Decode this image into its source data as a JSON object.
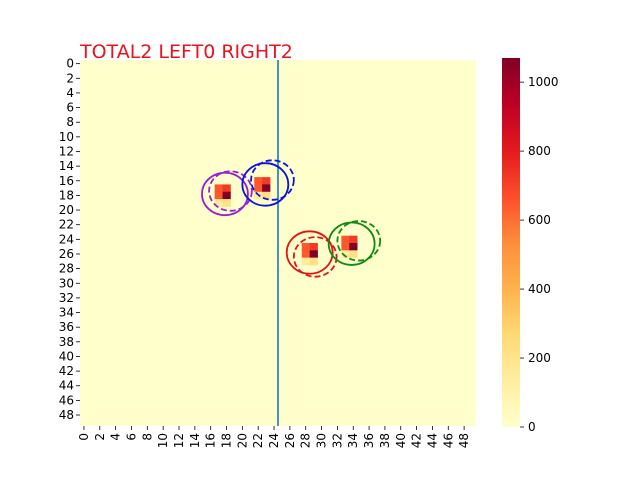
{
  "chart_data": {
    "type": "heatmap",
    "title": "TOTAL2  LEFT0 RIGHT2",
    "title_color": "#e8141c",
    "grid": false,
    "x_range": [
      0,
      49
    ],
    "y_range": [
      0,
      49
    ],
    "x_tick_labels": [
      "0",
      "2",
      "4",
      "6",
      "8",
      "10",
      "12",
      "14",
      "16",
      "18",
      "20",
      "22",
      "24",
      "26",
      "28",
      "30",
      "32",
      "34",
      "36",
      "38",
      "40",
      "42",
      "44",
      "46",
      "48"
    ],
    "y_tick_labels": [
      "0",
      "2",
      "4",
      "6",
      "8",
      "10",
      "12",
      "14",
      "16",
      "18",
      "20",
      "22",
      "24",
      "26",
      "28",
      "30",
      "32",
      "34",
      "36",
      "38",
      "40",
      "42",
      "44",
      "46",
      "48"
    ],
    "background_value": 0,
    "colormap": "YlOrRd",
    "colorbar": {
      "min": 0,
      "max": 1070,
      "tick_labels": [
        "0",
        "200",
        "400",
        "600",
        "800",
        "1000"
      ],
      "placement": "right"
    },
    "cells": [
      {
        "x": 17,
        "y": 17,
        "value": 650
      },
      {
        "x": 18,
        "y": 17,
        "value": 720
      },
      {
        "x": 17,
        "y": 18,
        "value": 650
      },
      {
        "x": 18,
        "y": 18,
        "value": 1070
      },
      {
        "x": 17,
        "y": 19,
        "value": 150
      },
      {
        "x": 18,
        "y": 19,
        "value": 220
      },
      {
        "x": 22,
        "y": 16,
        "value": 650
      },
      {
        "x": 23,
        "y": 16,
        "value": 720
      },
      {
        "x": 22,
        "y": 17,
        "value": 650
      },
      {
        "x": 23,
        "y": 17,
        "value": 1070
      },
      {
        "x": 22,
        "y": 18,
        "value": 150
      },
      {
        "x": 23,
        "y": 18,
        "value": 220
      },
      {
        "x": 28,
        "y": 25,
        "value": 650
      },
      {
        "x": 29,
        "y": 25,
        "value": 720
      },
      {
        "x": 28,
        "y": 26,
        "value": 650
      },
      {
        "x": 29,
        "y": 26,
        "value": 1070
      },
      {
        "x": 28,
        "y": 27,
        "value": 150
      },
      {
        "x": 29,
        "y": 27,
        "value": 220
      },
      {
        "x": 33,
        "y": 24,
        "value": 650
      },
      {
        "x": 34,
        "y": 24,
        "value": 720
      },
      {
        "x": 33,
        "y": 25,
        "value": 650
      },
      {
        "x": 34,
        "y": 25,
        "value": 1070
      },
      {
        "x": 33,
        "y": 26,
        "value": 150
      },
      {
        "x": 34,
        "y": 26,
        "value": 220
      }
    ],
    "vertical_line": {
      "x": 24.5,
      "color": "#1f77b4"
    },
    "circles": [
      {
        "cx": 17.8,
        "cy": 17.8,
        "r": 2.9,
        "color": "#9b1fcf",
        "style": "solid"
      },
      {
        "cx": 18.5,
        "cy": 17.4,
        "r": 2.7,
        "color": "#9b1fcf",
        "style": "dashed"
      },
      {
        "cx": 22.9,
        "cy": 16.5,
        "r": 2.9,
        "color": "#0a14e0",
        "style": "solid"
      },
      {
        "cx": 23.8,
        "cy": 15.9,
        "r": 2.7,
        "color": "#0a14e0",
        "style": "dashed"
      },
      {
        "cx": 28.5,
        "cy": 25.8,
        "r": 2.9,
        "color": "#e01414",
        "style": "solid"
      },
      {
        "cx": 29.2,
        "cy": 26.4,
        "r": 2.7,
        "color": "#e01414",
        "style": "dashed"
      },
      {
        "cx": 33.8,
        "cy": 24.6,
        "r": 2.9,
        "color": "#118a11",
        "style": "solid"
      },
      {
        "cx": 34.7,
        "cy": 24.2,
        "r": 2.7,
        "color": "#118a11",
        "style": "dashed"
      }
    ]
  }
}
